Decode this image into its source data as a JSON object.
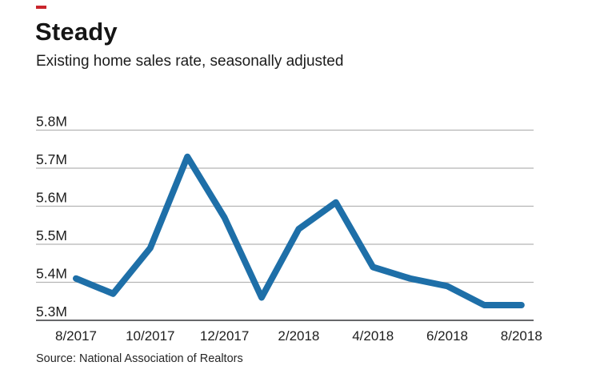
{
  "header": {
    "title": "Steady",
    "subtitle": "Existing home sales rate, seasonally adjusted",
    "accent_color": "#c9252c"
  },
  "chart_data": {
    "type": "line",
    "x": [
      "8/2017",
      "9/2017",
      "10/2017",
      "11/2017",
      "12/2017",
      "1/2018",
      "2/2018",
      "3/2018",
      "4/2018",
      "5/2018",
      "6/2018",
      "7/2018",
      "8/2018"
    ],
    "series": [
      {
        "name": "Existing home sales rate, seasonally adjusted",
        "values": [
          5.41,
          5.37,
          5.49,
          5.73,
          5.57,
          5.36,
          5.54,
          5.61,
          5.44,
          5.41,
          5.39,
          5.34,
          5.34
        ]
      }
    ],
    "title": "Steady",
    "subtitle": "Existing home sales rate, seasonally adjusted",
    "xlabel": "",
    "ylabel": "",
    "ylim": [
      5.3,
      5.8
    ],
    "unit": "M",
    "ytick_labels": [
      "5.3M",
      "5.4M",
      "5.5M",
      "5.6M",
      "5.7M",
      "5.8M"
    ],
    "xtick_labels": [
      "8/2017",
      "10/2017",
      "12/2017",
      "2/2018",
      "4/2018",
      "6/2018",
      "8/2018"
    ],
    "grid": "horizontal",
    "legend": "none",
    "colors": {
      "line": "#1e6fa8",
      "gridline": "#b5b5b5",
      "baseline": "#66676a",
      "tick_text": "#1e1e1e"
    }
  },
  "footer": {
    "source": "Source: National Association of Realtors"
  }
}
